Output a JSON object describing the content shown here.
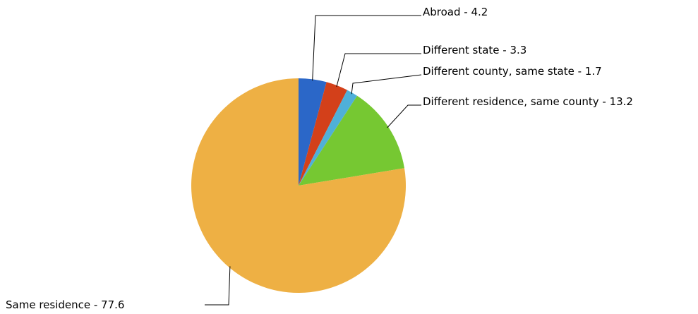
{
  "chart_data": {
    "type": "pie",
    "title": "",
    "unit": "",
    "slices": [
      {
        "name": "Abroad",
        "value": 4.2,
        "label": "Abroad - 4.2",
        "color": "#2b67c8"
      },
      {
        "name": "Different state",
        "value": 3.3,
        "label": "Different state - 3.3",
        "color": "#d3401a"
      },
      {
        "name": "Different county, same state",
        "value": 1.7,
        "label": "Different county, same state - 1.7",
        "color": "#4fb0d9"
      },
      {
        "name": "Different residence, same county",
        "value": 13.2,
        "label": "Different residence, same county - 13.2",
        "color": "#76c832"
      },
      {
        "name": "Same residence",
        "value": 77.6,
        "label": "Same residence - 77.6",
        "color": "#eeb044"
      }
    ],
    "start_angle_deg": 0,
    "direction": "clockwise",
    "legend": "none",
    "labels_with_leader_lines": true
  }
}
